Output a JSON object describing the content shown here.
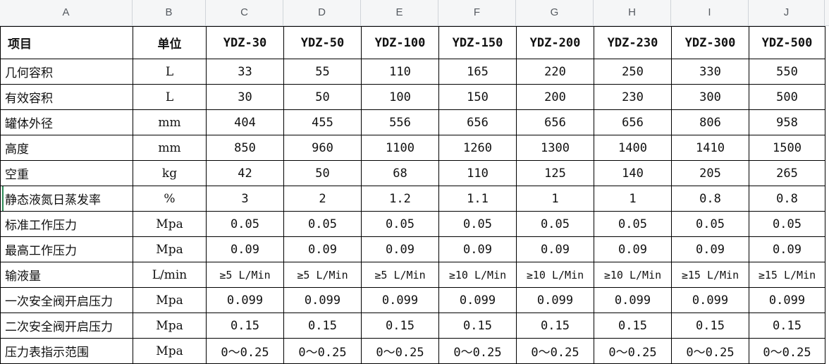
{
  "column_headers": [
    "A",
    "B",
    "C",
    "D",
    "E",
    "F",
    "G",
    "H",
    "I",
    "J"
  ],
  "header_row": [
    "项目",
    "单位",
    "YDZ-30",
    "YDZ-50",
    "YDZ-100",
    "YDZ-150",
    "YDZ-200",
    "YDZ-230",
    "YDZ-300",
    "YDZ-500"
  ],
  "rows": [
    [
      "几何容积",
      "L",
      "33",
      "55",
      "110",
      "165",
      "220",
      "250",
      "330",
      "550"
    ],
    [
      "有效容积",
      "L",
      "30",
      "50",
      "100",
      "150",
      "200",
      "230",
      "300",
      "500"
    ],
    [
      "罐体外径",
      "mm",
      "404",
      "455",
      "556",
      "656",
      "656",
      "656",
      "806",
      "958"
    ],
    [
      "高度",
      "mm",
      "850",
      "960",
      "1100",
      "1260",
      "1300",
      "1400",
      "1410",
      "1500"
    ],
    [
      "空重",
      "kg",
      "42",
      "50",
      "68",
      "110",
      "125",
      "140",
      "205",
      "265"
    ],
    [
      "静态液氮日蒸发率",
      "%",
      "3",
      "2",
      "1.2",
      "1.1",
      "1",
      "1",
      "0.8",
      "0.8"
    ],
    [
      "标准工作压力",
      "Mpa",
      "0.05",
      "0.05",
      "0.05",
      "0.05",
      "0.05",
      "0.05",
      "0.05",
      "0.05"
    ],
    [
      "最高工作压力",
      "Mpa",
      "0.09",
      "0.09",
      "0.09",
      "0.09",
      "0.09",
      "0.09",
      "0.09",
      "0.09"
    ],
    [
      "输液量",
      "L/min",
      "≥5 L/Min",
      "≥5 L/Min",
      "≥5 L/Min",
      "≥10 L/Min",
      "≥10 L/Min",
      "≥10 L/Min",
      "≥15 L/Min",
      "≥15 L/Min"
    ],
    [
      "一次安全阀开启压力",
      "Mpa",
      "0.099",
      "0.099",
      "0.099",
      "0.099",
      "0.099",
      "0.099",
      "0.099",
      "0.099"
    ],
    [
      "二次安全阀开启压力",
      "Mpa",
      "0.15",
      "0.15",
      "0.15",
      "0.15",
      "0.15",
      "0.15",
      "0.15",
      "0.15"
    ],
    [
      "压力表指示范围",
      "Mpa",
      "0～0.25",
      "0～0.25",
      "0～0.25",
      "0～0.25",
      "0～0.25",
      "0～0.25",
      "0～0.25",
      "0～0.25"
    ]
  ]
}
